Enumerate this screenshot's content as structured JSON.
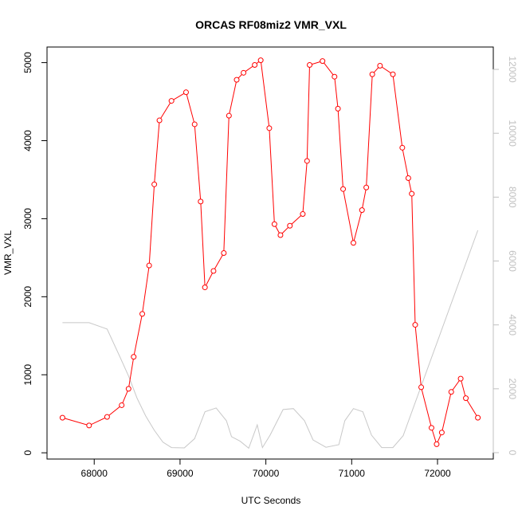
{
  "chart_data": {
    "type": "line",
    "title": "ORCAS RF08miz2 VMR_VXL",
    "xlabel": "UTC Seconds",
    "ylabel": "VMR_VXL",
    "xlim": [
      67450,
      72650
    ],
    "ylim": [
      -80,
      5200
    ],
    "y2lim": [
      -200,
      12700
    ],
    "xticks": [
      68000,
      69000,
      70000,
      71000,
      72000
    ],
    "yticks": [
      0,
      1000,
      2000,
      3000,
      4000,
      5000
    ],
    "y2ticks": [
      0,
      2000,
      4000,
      6000,
      8000,
      10000,
      12000
    ],
    "grid": false,
    "series": [
      {
        "axis": "left",
        "color": "#ff0000",
        "marker": "open-circle",
        "points": [
          [
            67630,
            450
          ],
          [
            67940,
            350
          ],
          [
            68150,
            460
          ],
          [
            68320,
            610
          ],
          [
            68400,
            820
          ],
          [
            68460,
            1230
          ],
          [
            68560,
            1780
          ],
          [
            68640,
            2400
          ],
          [
            68700,
            3440
          ],
          [
            68760,
            4260
          ],
          [
            68900,
            4510
          ],
          [
            69070,
            4620
          ],
          [
            69170,
            4210
          ],
          [
            69240,
            3220
          ],
          [
            69290,
            2120
          ],
          [
            69390,
            2330
          ],
          [
            69510,
            2560
          ],
          [
            69570,
            4320
          ],
          [
            69660,
            4780
          ],
          [
            69740,
            4870
          ],
          [
            69870,
            4970
          ],
          [
            69940,
            5030
          ],
          [
            70040,
            4160
          ],
          [
            70100,
            2930
          ],
          [
            70170,
            2790
          ],
          [
            70280,
            2910
          ],
          [
            70430,
            3060
          ],
          [
            70480,
            3740
          ],
          [
            70510,
            4970
          ],
          [
            70660,
            5020
          ],
          [
            70800,
            4820
          ],
          [
            70840,
            4410
          ],
          [
            70900,
            3380
          ],
          [
            71020,
            2690
          ],
          [
            71120,
            3110
          ],
          [
            71170,
            3400
          ],
          [
            71240,
            4850
          ],
          [
            71330,
            4960
          ],
          [
            71480,
            4850
          ],
          [
            71590,
            3910
          ],
          [
            71660,
            3520
          ],
          [
            71700,
            3320
          ],
          [
            71740,
            1640
          ],
          [
            71810,
            840
          ],
          [
            71930,
            320
          ],
          [
            71990,
            110
          ],
          [
            72050,
            260
          ],
          [
            72160,
            780
          ],
          [
            72270,
            950
          ],
          [
            72330,
            700
          ],
          [
            72470,
            450
          ]
        ]
      },
      {
        "axis": "right",
        "color": "#c8c8c8",
        "marker": "none",
        "points": [
          [
            67630,
            4070
          ],
          [
            67940,
            4070
          ],
          [
            68150,
            3870
          ],
          [
            68300,
            3000
          ],
          [
            68400,
            2400
          ],
          [
            68500,
            1700
          ],
          [
            68600,
            1150
          ],
          [
            68700,
            700
          ],
          [
            68800,
            330
          ],
          [
            68900,
            160
          ],
          [
            69050,
            150
          ],
          [
            69170,
            440
          ],
          [
            69290,
            1280
          ],
          [
            69420,
            1400
          ],
          [
            69540,
            1000
          ],
          [
            69600,
            500
          ],
          [
            69700,
            360
          ],
          [
            69800,
            140
          ],
          [
            69900,
            870
          ],
          [
            69960,
            160
          ],
          [
            70050,
            550
          ],
          [
            70200,
            1350
          ],
          [
            70320,
            1380
          ],
          [
            70450,
            1000
          ],
          [
            70550,
            400
          ],
          [
            70700,
            170
          ],
          [
            70850,
            250
          ],
          [
            70920,
            1000
          ],
          [
            71020,
            1380
          ],
          [
            71130,
            1280
          ],
          [
            71230,
            550
          ],
          [
            71350,
            160
          ],
          [
            71480,
            160
          ],
          [
            71600,
            530
          ],
          [
            72470,
            6960
          ]
        ]
      }
    ]
  }
}
